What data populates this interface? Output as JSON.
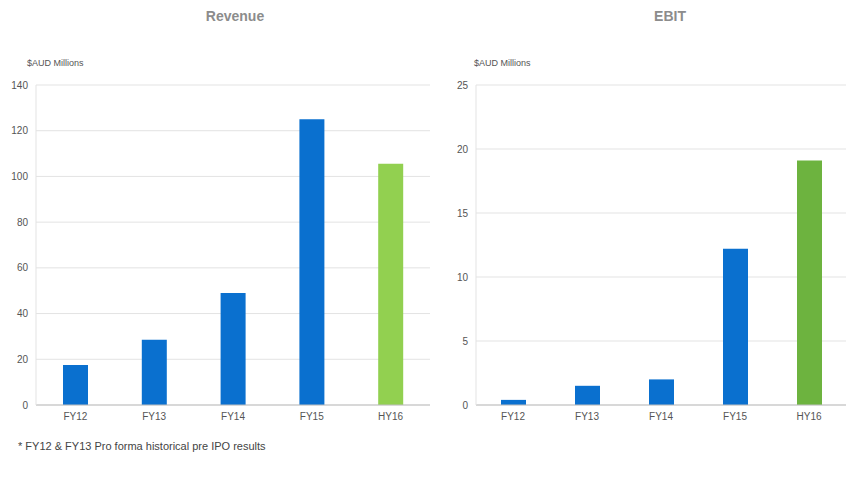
{
  "chart_data": [
    {
      "type": "bar",
      "title": "Revenue",
      "y_label": "$AUD Millions",
      "categories": [
        "FY12",
        "FY13",
        "FY14",
        "FY15",
        "HY16"
      ],
      "values": [
        17.5,
        28.5,
        49,
        125,
        105.5
      ],
      "colors": [
        "#0a70cf",
        "#0a70cf",
        "#0a70cf",
        "#0a70cf",
        "#92d050"
      ],
      "ylim": [
        0,
        140
      ],
      "yticks": [
        0,
        20,
        40,
        60,
        80,
        100,
        120,
        140
      ],
      "grid": true
    },
    {
      "type": "bar",
      "title": "EBIT",
      "y_label": "$AUD Millions",
      "categories": [
        "FY12",
        "FY13",
        "FY14",
        "FY15",
        "HY16"
      ],
      "values": [
        0.4,
        1.5,
        2.0,
        12.2,
        19.1
      ],
      "colors": [
        "#0a70cf",
        "#0a70cf",
        "#0a70cf",
        "#0a70cf",
        "#6db33f"
      ],
      "ylim": [
        0,
        25
      ],
      "yticks": [
        0,
        5,
        10,
        15,
        20,
        25
      ],
      "grid": true
    }
  ],
  "footnote": "* FY12 & FY13 Pro forma historical pre IPO results"
}
